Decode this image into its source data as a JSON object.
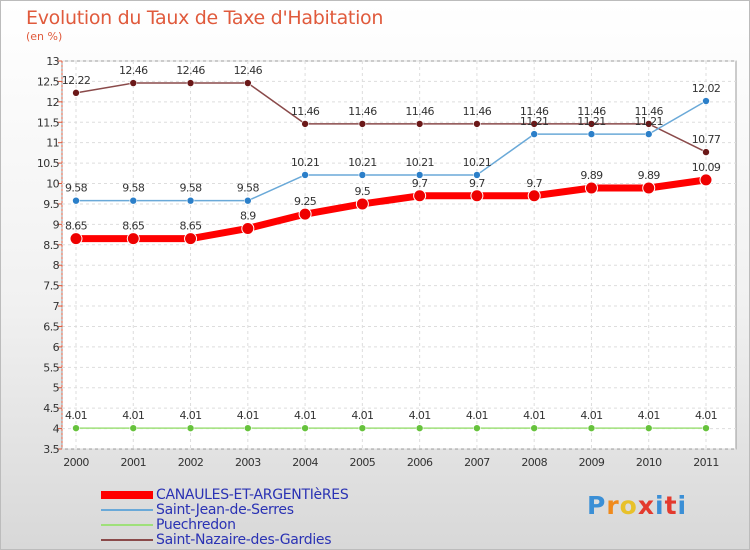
{
  "chart_data": {
    "type": "line",
    "title": "Evolution du Taux de Taxe d'Habitation",
    "unit": "(en %)",
    "x": [
      "2000",
      "2001",
      "2002",
      "2003",
      "2004",
      "2005",
      "2006",
      "2007",
      "2008",
      "2009",
      "2010",
      "2011"
    ],
    "ylim": [
      3.5,
      13
    ],
    "yticks": [
      "3.5",
      "4",
      "4.5",
      "5",
      "5.5",
      "6",
      "6.5",
      "7",
      "7.5",
      "8",
      "8.5",
      "9",
      "9.5",
      "10",
      "10.5",
      "11",
      "11.5",
      "12",
      "12.5",
      "13"
    ],
    "series": [
      {
        "name": "CANAULES-ET-ARGENTIèRES",
        "color": "#ff0000",
        "dot": "#ee0000",
        "width": 7,
        "radius": 6,
        "values": [
          8.65,
          8.65,
          8.65,
          8.9,
          9.25,
          9.5,
          9.7,
          9.7,
          9.7,
          9.89,
          9.89,
          10.09
        ],
        "labels": [
          "8.65",
          "8.65",
          "8.65",
          "8.9",
          "9.25",
          "9.5",
          "9.7",
          "9.7",
          "9.7",
          "9.89",
          "9.89",
          "10.09"
        ]
      },
      {
        "name": "Saint-Jean-de-Serres",
        "color": "#6aa9d8",
        "dot": "#2b7fc9",
        "width": 1.5,
        "radius": 3.5,
        "values": [
          9.58,
          9.58,
          9.58,
          9.58,
          10.21,
          10.21,
          10.21,
          10.21,
          11.21,
          11.21,
          11.21,
          12.02
        ],
        "labels": [
          "9.58",
          "9.58",
          "9.58",
          "9.58",
          "10.21",
          "10.21",
          "10.21",
          "10.21",
          "11.21",
          "11.21",
          "11.21",
          "12.02"
        ]
      },
      {
        "name": "Puechredon",
        "color": "#9fe07a",
        "dot": "#66c23c",
        "width": 1.5,
        "radius": 3.5,
        "values": [
          4.01,
          4.01,
          4.01,
          4.01,
          4.01,
          4.01,
          4.01,
          4.01,
          4.01,
          4.01,
          4.01,
          4.01
        ],
        "labels": [
          "4.01",
          "4.01",
          "4.01",
          "4.01",
          "4.01",
          "4.01",
          "4.01",
          "4.01",
          "4.01",
          "4.01",
          "4.01",
          "4.01"
        ]
      },
      {
        "name": "Saint-Nazaire-des-Gardies",
        "color": "#8a4a4a",
        "dot": "#6b1818",
        "width": 1.5,
        "radius": 3.5,
        "values": [
          12.22,
          12.46,
          12.46,
          12.46,
          11.46,
          11.46,
          11.46,
          11.46,
          11.46,
          11.46,
          11.46,
          10.77
        ],
        "labels": [
          "12.22",
          "12.46",
          "12.46",
          "12.46",
          "11.46",
          "11.46",
          "11.46",
          "11.46",
          "11.46",
          "11.46",
          "11.46",
          "10.77"
        ]
      }
    ]
  },
  "logo": {
    "text": "Proxiti",
    "letter_colors": [
      "#3b8fd6",
      "#f08a1c",
      "#e8c12a",
      "#e33a2e",
      "#3b8fd6",
      "#e33a2e",
      "#3b8fd6"
    ]
  }
}
